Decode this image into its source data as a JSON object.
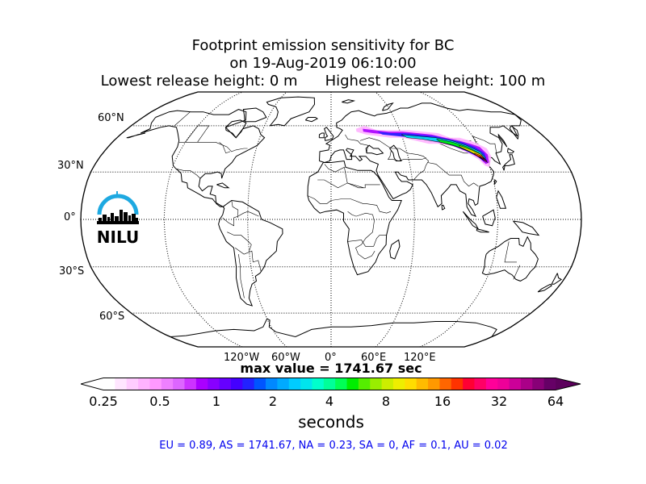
{
  "title": {
    "line1": "Footprint emission sensitivity for BC",
    "line2": "on 19-Aug-2019 06:10:00",
    "lowest": "Lowest release height: 0 m",
    "highest": "Highest release height: 100 m"
  },
  "map": {
    "projection": "Robinson",
    "lat_labels": [
      "60°N",
      "30°N",
      "0°",
      "30°S",
      "60°S"
    ],
    "lon_labels": [
      "120°W",
      "60°W",
      "0°",
      "60°E",
      "120°E"
    ],
    "logo_text": "NILU",
    "logo_colors": {
      "arc": "#1ea9e1",
      "skyline": "#000000"
    }
  },
  "max_value": "max value = 1741.67 sec",
  "colorbar": {
    "ticks": [
      "0.25",
      "0.5",
      "1",
      "2",
      "4",
      "8",
      "16",
      "32",
      "64"
    ],
    "unit": "seconds",
    "scale": "log2",
    "colors": [
      "#ffffff",
      "#ffe6ff",
      "#ffccff",
      "#ffb3ff",
      "#ff99ff",
      "#ee80ff",
      "#dd66ff",
      "#cc33ff",
      "#aa00ff",
      "#8800ff",
      "#6600ff",
      "#4400ff",
      "#2222ff",
      "#0055ff",
      "#0088ff",
      "#00aaff",
      "#00ccff",
      "#00e5ee",
      "#00ffcc",
      "#00ff99",
      "#00ff55",
      "#00ee00",
      "#55ee00",
      "#99ee00",
      "#ccee00",
      "#eeee00",
      "#ffdd00",
      "#ffbb00",
      "#ff9900",
      "#ff6600",
      "#ff3300",
      "#ff0033",
      "#ff0066",
      "#ff0099",
      "#ee0099",
      "#cc0099",
      "#aa0088",
      "#880077",
      "#660066"
    ]
  },
  "regions": "EU = 0.89,  AS = 1741.67,  NA = 0.23,  SA = 0,  AF = 0.1,  AU = 0.02"
}
